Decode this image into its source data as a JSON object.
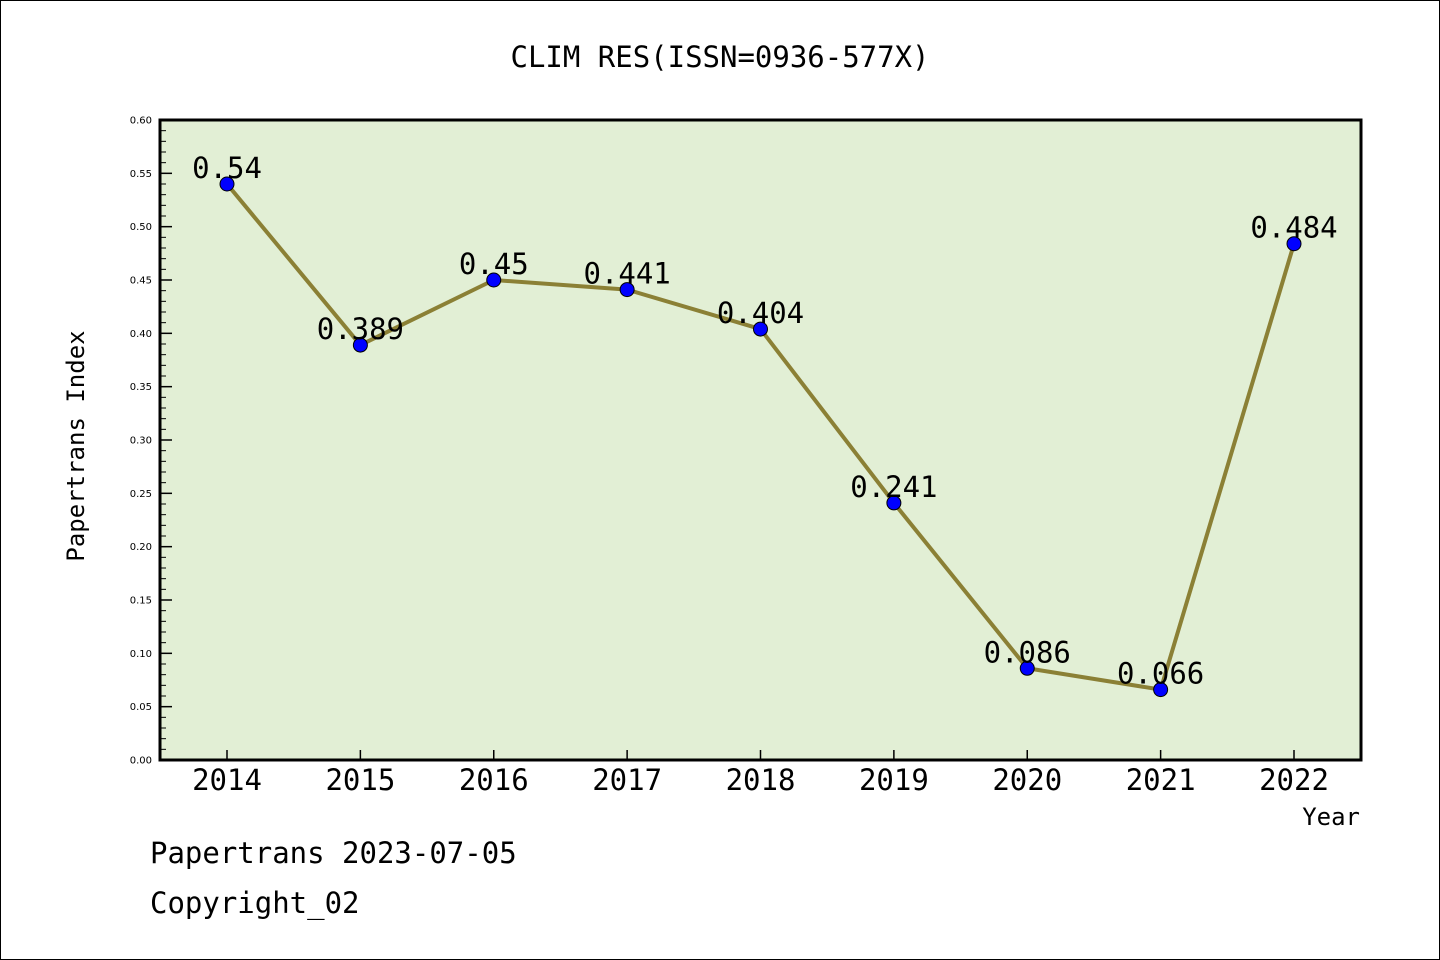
{
  "chart_data": {
    "type": "line",
    "title": "CLIM RES(ISSN=0936-577X)",
    "xlabel": "Year",
    "ylabel": "Papertrans Index",
    "x": [
      "2014",
      "2015",
      "2016",
      "2017",
      "2018",
      "2019",
      "2020",
      "2021",
      "2022"
    ],
    "series": [
      {
        "values": [
          0.54,
          0.389,
          0.45,
          0.441,
          0.404,
          0.241,
          0.086,
          0.066,
          0.484
        ],
        "labels": [
          "0.54",
          "0.389",
          "0.45",
          "0.441",
          "0.404",
          "0.241",
          "0.086",
          "0.066",
          "0.484"
        ]
      }
    ],
    "ylim": [
      0,
      0.6
    ],
    "yticks": [
      "0.00",
      "0.05",
      "0.10",
      "0.15",
      "0.20",
      "0.25",
      "0.30",
      "0.35",
      "0.40",
      "0.45",
      "0.50",
      "0.55",
      "0.60"
    ],
    "grid": false,
    "colors": {
      "plot_background": "#e2efd5",
      "line": "#8b8035",
      "marker": "#0000ff"
    }
  },
  "footer": {
    "date_line": "Papertrans 2023-07-05",
    "copyright": "Copyright_02"
  }
}
